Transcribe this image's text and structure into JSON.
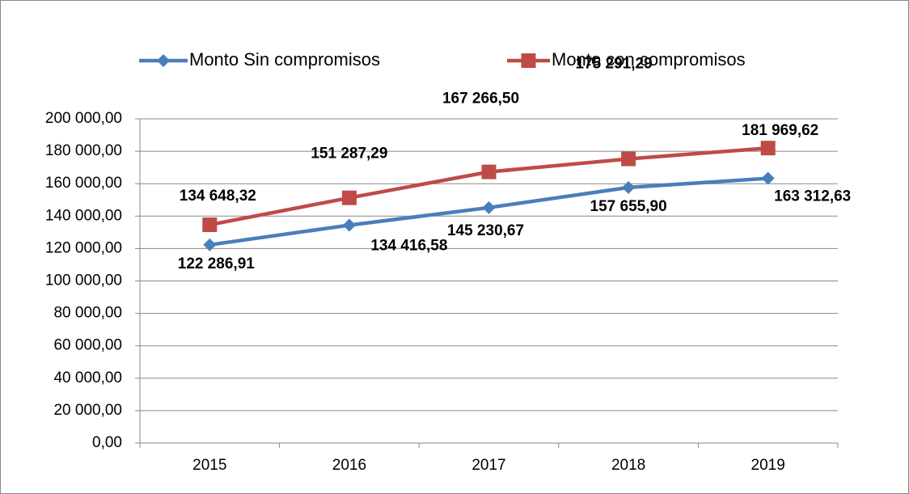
{
  "chart_data": {
    "type": "line",
    "categories": [
      "2015",
      "2016",
      "2017",
      "2018",
      "2019"
    ],
    "series": [
      {
        "name": "Monto Sin compromisos",
        "color": "#4a7ebb",
        "values": [
          122286.91,
          134416.58,
          145230.67,
          157655.9,
          163312.63
        ],
        "value_labels": [
          "122 286,91",
          "134 416,58",
          "145 230,67",
          "157 655,90",
          "163 312,63"
        ]
      },
      {
        "name": "Monto con compromisos",
        "color": "#be4b48",
        "values": [
          134648.32,
          151287.29,
          167266.5,
          175291.29,
          181969.62
        ],
        "value_labels": [
          "134 648,32",
          "151 287,29",
          "167 266,50",
          "175 291,29",
          "181 969,62"
        ]
      }
    ],
    "ylim": [
      0,
      200000
    ],
    "yticks": [
      {
        "value": 0,
        "label": "0,00"
      },
      {
        "value": 20000,
        "label": "20 000,00"
      },
      {
        "value": 40000,
        "label": "40 000,00"
      },
      {
        "value": 60000,
        "label": "60 000,00"
      },
      {
        "value": 80000,
        "label": "80 000,00"
      },
      {
        "value": 100000,
        "label": "100 000,00"
      },
      {
        "value": 120000,
        "label": "120 000,00"
      },
      {
        "value": 140000,
        "label": "140 000,00"
      },
      {
        "value": 160000,
        "label": "160 000,00"
      },
      {
        "value": 180000,
        "label": "180 000,00"
      },
      {
        "value": 200000,
        "label": "200 000,00"
      }
    ],
    "grid": true,
    "legend": "top"
  }
}
